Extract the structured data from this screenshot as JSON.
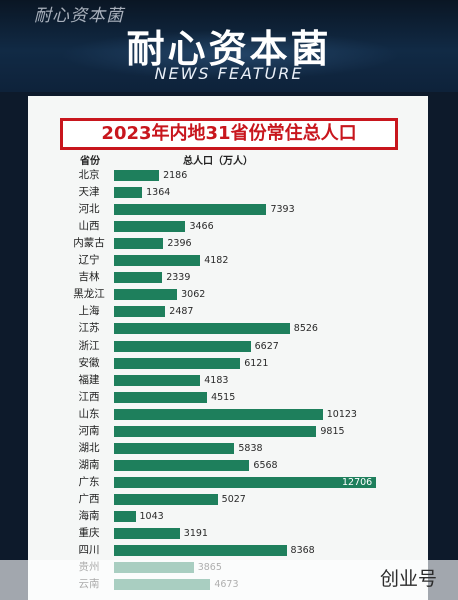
{
  "header": {
    "watermark": "耐心资本菌",
    "brand_title": "耐心资本菌",
    "brand_subtitle": "NEWS FEATURE"
  },
  "footer_watermark": "创业号",
  "colors": {
    "bar": "#1e7f5c",
    "title_red": "#c8161d"
  },
  "chart_data": {
    "type": "bar",
    "orientation": "horizontal",
    "title": "2023年内地31省份常住总人口",
    "category_header": "省份",
    "value_header": "总人口（万人）",
    "categories": [
      "北京",
      "天津",
      "河北",
      "山西",
      "内蒙古",
      "辽宁",
      "吉林",
      "黑龙江",
      "上海",
      "江苏",
      "浙江",
      "安徽",
      "福建",
      "江西",
      "山东",
      "河南",
      "湖北",
      "湖南",
      "广东",
      "广西",
      "海南",
      "重庆",
      "四川",
      "贵州",
      "云南"
    ],
    "values": [
      2186,
      1364,
      7393,
      3466,
      2396,
      4182,
      2339,
      3062,
      2487,
      8526,
      6627,
      6121,
      4183,
      4515,
      10123,
      9815,
      5838,
      6568,
      12706,
      5027,
      1043,
      3191,
      8368,
      3865,
      4673
    ],
    "xlim": [
      0,
      12706
    ]
  }
}
